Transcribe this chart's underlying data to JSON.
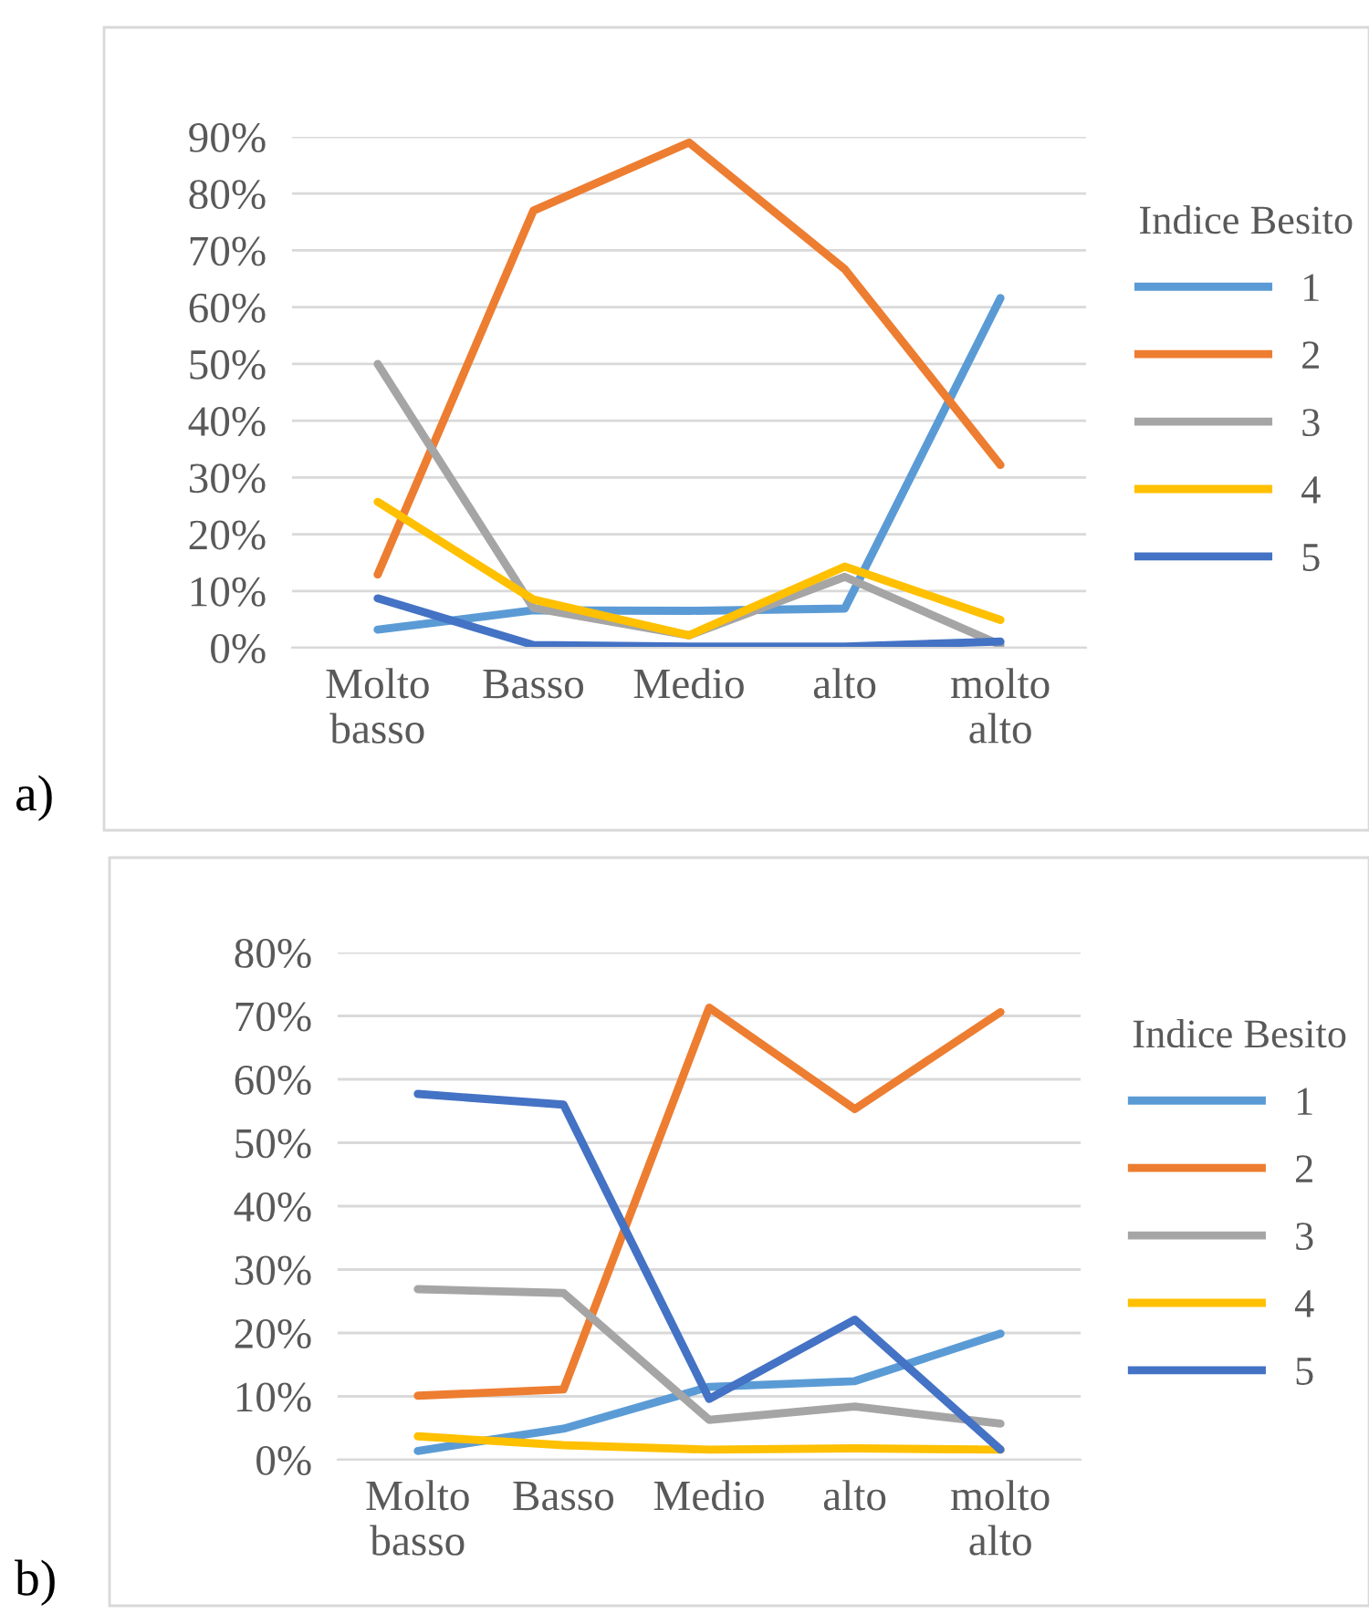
{
  "chart_data": [
    {
      "type": "line",
      "legend_title": "Indice Besito",
      "legend": "right",
      "grid": "y",
      "annotations": [
        "a)"
      ],
      "categories": [
        "Molto basso",
        "Basso",
        "Medio",
        "alto",
        "molto alto"
      ],
      "ylim": [
        0,
        90
      ],
      "yticks": [
        {
          "value": 0,
          "label": "0%"
        },
        {
          "value": 10,
          "label": "10%"
        },
        {
          "value": 20,
          "label": "20%"
        },
        {
          "value": 30,
          "label": "30%"
        },
        {
          "value": 40,
          "label": "40%"
        },
        {
          "value": 50,
          "label": "50%"
        },
        {
          "value": 60,
          "label": "60%"
        },
        {
          "value": 70,
          "label": "70%"
        },
        {
          "value": 80,
          "label": "80%"
        },
        {
          "value": 90,
          "label": "90%"
        }
      ],
      "series": [
        {
          "name": "1",
          "color": "#5b9bd5",
          "values": [
            3.2,
            6.6,
            6.5,
            6.9,
            61.6
          ]
        },
        {
          "name": "2",
          "color": "#ed7d31",
          "values": [
            12.9,
            77,
            89,
            66.7,
            32.2
          ]
        },
        {
          "name": "3",
          "color": "#a5a5a5",
          "values": [
            50,
            7,
            2.2,
            12.5,
            0.5
          ]
        },
        {
          "name": "4",
          "color": "#ffc000",
          "values": [
            25.7,
            8.5,
            2.2,
            14.3,
            4.9
          ]
        },
        {
          "name": "5",
          "color": "#4472c4",
          "values": [
            8.7,
            0.5,
            0.2,
            0.2,
            1.1
          ]
        }
      ]
    },
    {
      "type": "line",
      "legend_title": "Indice Besito",
      "legend": "right",
      "grid": "y",
      "annotations": [
        "b)"
      ],
      "categories": [
        "Molto basso",
        "Basso",
        "Medio",
        "alto",
        "molto alto"
      ],
      "ylim": [
        0,
        80
      ],
      "yticks": [
        {
          "value": 0,
          "label": "0%"
        },
        {
          "value": 10,
          "label": "10%"
        },
        {
          "value": 20,
          "label": "20%"
        },
        {
          "value": 30,
          "label": "30%"
        },
        {
          "value": 40,
          "label": "40%"
        },
        {
          "value": 50,
          "label": "50%"
        },
        {
          "value": 60,
          "label": "60%"
        },
        {
          "value": 70,
          "label": "70%"
        },
        {
          "value": 80,
          "label": "80%"
        }
      ],
      "series": [
        {
          "name": "1",
          "color": "#5b9bd5",
          "values": [
            1.4,
            4.9,
            11.5,
            12.4,
            19.9
          ]
        },
        {
          "name": "2",
          "color": "#ed7d31",
          "values": [
            10.1,
            11.1,
            71.3,
            55.3,
            70.6
          ]
        },
        {
          "name": "3",
          "color": "#a5a5a5",
          "values": [
            26.9,
            26.3,
            6.3,
            8.4,
            5.7
          ]
        },
        {
          "name": "4",
          "color": "#ffc000",
          "values": [
            3.7,
            2.3,
            1.6,
            1.8,
            1.6
          ]
        },
        {
          "name": "5",
          "color": "#4472c4",
          "values": [
            57.7,
            56.0,
            9.6,
            22.1,
            1.6
          ]
        }
      ]
    }
  ]
}
